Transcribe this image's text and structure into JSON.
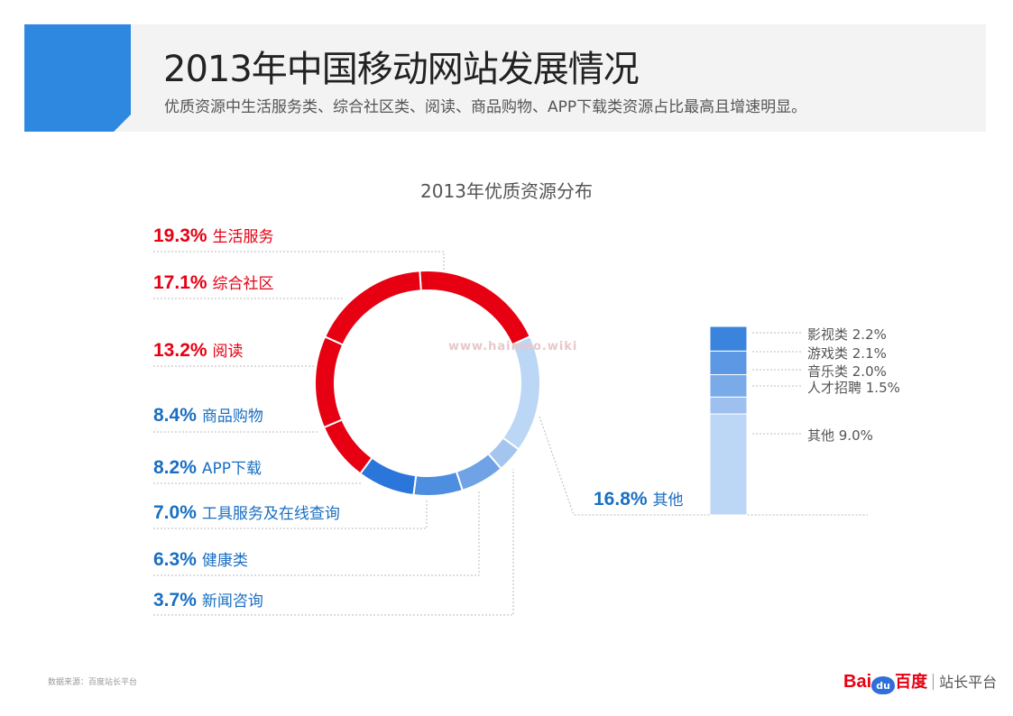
{
  "header": {
    "title": "2013年中国移动网站发展情况",
    "subtitle": "优质资源中生活服务类、综合社区类、阅读、商品购物、APP下载类资源占比最高且增速明显。"
  },
  "chart_data": {
    "type": "pie",
    "title": "2013年优质资源分布",
    "unit": "%",
    "slices": [
      {
        "name": "生活服务",
        "value": 19.3,
        "label": "19.3%",
        "color": "#e60012"
      },
      {
        "name": "其他",
        "value": 16.8,
        "label": "16.8%",
        "color": "#bcd6f5"
      },
      {
        "name": "新闻咨询",
        "value": 3.7,
        "label": "3.7%",
        "color": "#a4c5ee"
      },
      {
        "name": "健康类",
        "value": 6.3,
        "label": "6.3%",
        "color": "#6fa3e6"
      },
      {
        "name": "工具服务及在线查询",
        "value": 7.0,
        "label": "7.0%",
        "color": "#4d8ee0"
      },
      {
        "name": "APP下载",
        "value": 8.2,
        "label": "8.2%",
        "color": "#2a76da"
      },
      {
        "name": "商品购物",
        "value": 8.4,
        "label": "8.4%",
        "color": "#e60012"
      },
      {
        "name": "阅读",
        "value": 13.2,
        "label": "13.2%",
        "color": "#e60012"
      },
      {
        "name": "综合社区",
        "value": 17.1,
        "label": "17.1%",
        "color": "#e60012"
      }
    ],
    "other_breakdown": {
      "type": "stacked-bar",
      "total": 16.8,
      "segments": [
        {
          "name": "影视类",
          "value": 2.2,
          "label": "影视类 2.2%",
          "color": "#3a84de"
        },
        {
          "name": "游戏类",
          "value": 2.1,
          "label": "游戏类 2.1%",
          "color": "#5c98e3"
        },
        {
          "name": "音乐类",
          "value": 2.0,
          "label": "音乐类 2.0%",
          "color": "#7aabe9"
        },
        {
          "name": "人才招聘",
          "value": 1.5,
          "label": "人才招聘 1.5%",
          "color": "#9ec0ee"
        },
        {
          "name": "其他",
          "value": 9.0,
          "label": "其他 9.0%",
          "color": "#bcd6f5"
        }
      ]
    }
  },
  "watermark": "www.haimao.wiki",
  "footer": {
    "source": "数据来源：百度站长平台",
    "brand_bai": "Bai",
    "brand_du": "du",
    "brand_cn": "百度",
    "brand_platform": "站长平台"
  }
}
